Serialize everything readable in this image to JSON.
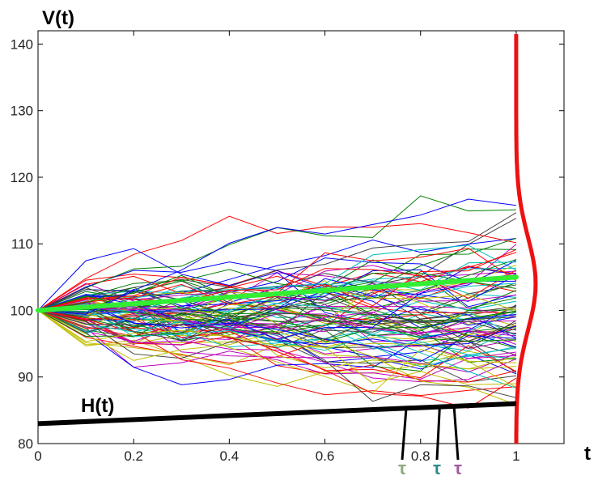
{
  "chart_data": {
    "type": "line",
    "ylabel": "V(t)",
    "xlabel": "t",
    "xlim": [
      0,
      1.1
    ],
    "ylim": [
      80,
      142
    ],
    "xticks": [
      "0",
      "0.2",
      "0.4",
      "0.6",
      "0.8",
      "1"
    ],
    "xtick_values": [
      0,
      0.2,
      0.4,
      0.6,
      0.8,
      1
    ],
    "yticks": [
      "80",
      "90",
      "100",
      "110",
      "120",
      "130",
      "140"
    ],
    "ytick_values": [
      80,
      90,
      100,
      110,
      120,
      130,
      140
    ],
    "grid": false,
    "start_value": 100,
    "time_step": 0.1,
    "path_count": 100,
    "path_colors": [
      "#0000ff",
      "#008000",
      "#ff0000",
      "#00bfbf",
      "#bf00bf",
      "#bfbf00",
      "#404040"
    ],
    "expected_path": {
      "color": "#33ee33",
      "x": [
        0,
        1
      ],
      "y": [
        100,
        105
      ]
    },
    "barrier": {
      "label": "H(t)",
      "color": "#000000",
      "x": [
        0,
        1
      ],
      "y": [
        83,
        86
      ]
    },
    "terminal_density": {
      "color": "#ee1111",
      "center": 104,
      "spread": 7
    },
    "hitting_times": [
      {
        "label": "τ",
        "x": 0.77,
        "color": "#8fa87a"
      },
      {
        "label": "τ",
        "x": 0.84,
        "color": "#2e8a8a"
      },
      {
        "label": "τ",
        "x": 0.87,
        "color": "#a05aa0"
      }
    ]
  }
}
